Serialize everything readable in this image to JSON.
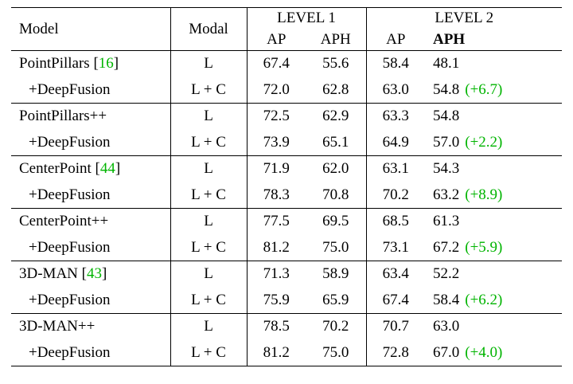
{
  "colors": {
    "green": "#00b400"
  },
  "table": {
    "headers": {
      "model": "Model",
      "modal": "Modal",
      "level1": "LEVEL 1",
      "level2": "LEVEL 2",
      "ap1": "AP",
      "aph1": "APH",
      "ap2": "AP",
      "aph2": "APH"
    },
    "rows": [
      {
        "model": "PointPillars ",
        "cite_open": "[",
        "cite": "16",
        "cite_close": "]",
        "modal": "L",
        "l1_ap": "67.4",
        "l1_aph": "55.6",
        "l2_ap": "58.4",
        "l2_aph": "48.1",
        "gain": ""
      },
      {
        "model": "+DeepFusion",
        "modal": "L + C",
        "l1_ap": "72.0",
        "l1_aph": "62.8",
        "l2_ap": "63.0",
        "l2_aph": "54.8",
        "gain": "(+6.7)"
      },
      {
        "model": "PointPillars++",
        "modal": "L",
        "l1_ap": "72.5",
        "l1_aph": "62.9",
        "l2_ap": "63.3",
        "l2_aph": "54.8",
        "gain": ""
      },
      {
        "model": "+DeepFusion",
        "modal": "L + C",
        "l1_ap": "73.9",
        "l1_aph": "65.1",
        "l2_ap": "64.9",
        "l2_aph": "57.0",
        "gain": "(+2.2)"
      },
      {
        "model": "CenterPoint ",
        "cite_open": "[",
        "cite": "44",
        "cite_close": "]",
        "modal": "L",
        "l1_ap": "71.9",
        "l1_aph": "62.0",
        "l2_ap": "63.1",
        "l2_aph": "54.3",
        "gain": ""
      },
      {
        "model": "+DeepFusion",
        "modal": "L + C",
        "l1_ap": "78.3",
        "l1_aph": "70.8",
        "l2_ap": "70.2",
        "l2_aph": "63.2",
        "gain": "(+8.9)"
      },
      {
        "model": "CenterPoint++",
        "modal": "L",
        "l1_ap": "77.5",
        "l1_aph": "69.5",
        "l2_ap": "68.5",
        "l2_aph": "61.3",
        "gain": ""
      },
      {
        "model": "+DeepFusion",
        "modal": "L + C",
        "l1_ap": "81.2",
        "l1_aph": "75.0",
        "l2_ap": "73.1",
        "l2_aph": "67.2",
        "gain": "(+5.9)"
      },
      {
        "model": "3D-MAN ",
        "cite_open": "[",
        "cite": "43",
        "cite_close": "]",
        "modal": "L",
        "l1_ap": "71.3",
        "l1_aph": "58.9",
        "l2_ap": "63.4",
        "l2_aph": "52.2",
        "gain": ""
      },
      {
        "model": "+DeepFusion",
        "modal": "L + C",
        "l1_ap": "75.9",
        "l1_aph": "65.9",
        "l2_ap": "67.4",
        "l2_aph": "58.4",
        "gain": "(+6.2)"
      },
      {
        "model": "3D-MAN++",
        "modal": "L",
        "l1_ap": "78.5",
        "l1_aph": "70.2",
        "l2_ap": "70.7",
        "l2_aph": "63.0",
        "gain": ""
      },
      {
        "model": "+DeepFusion",
        "modal": "L + C",
        "l1_ap": "81.2",
        "l1_aph": "75.0",
        "l2_ap": "72.8",
        "l2_aph": "67.0",
        "gain": "(+4.0)"
      }
    ]
  }
}
